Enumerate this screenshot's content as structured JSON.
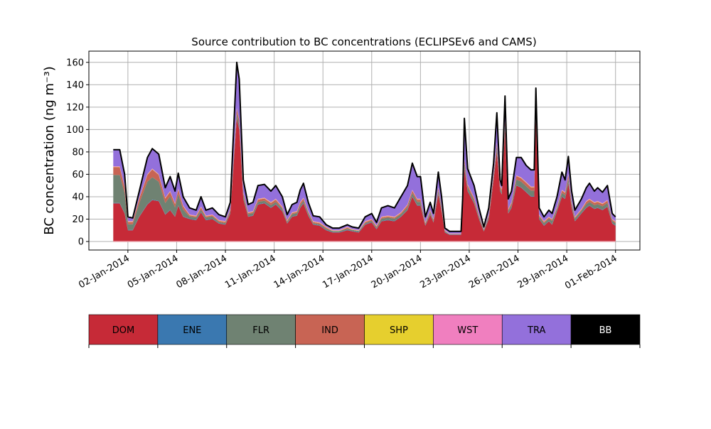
{
  "chart_data": {
    "type": "area",
    "stacked": true,
    "title": "Source contribution to BC concentrations (ECLIPSEv6 and CAMS)",
    "xlabel": "",
    "ylabel": "BC concentration (ng m⁻³)",
    "x_unit": "day of January 2014",
    "xlim": [
      -0.4,
      33.5
    ],
    "ylim": [
      -7.6,
      170
    ],
    "grid": true,
    "yticks": [
      0,
      20,
      40,
      60,
      80,
      100,
      120,
      140,
      160
    ],
    "xticks": [
      {
        "day": 2,
        "label": "02-Jan-2014"
      },
      {
        "day": 5,
        "label": "05-Jan-2014"
      },
      {
        "day": 8,
        "label": "08-Jan-2014"
      },
      {
        "day": 11,
        "label": "11-Jan-2014"
      },
      {
        "day": 14,
        "label": "14-Jan-2014"
      },
      {
        "day": 17,
        "label": "17-Jan-2014"
      },
      {
        "day": 20,
        "label": "20-Jan-2014"
      },
      {
        "day": 23,
        "label": "23-Jan-2014"
      },
      {
        "day": 26,
        "label": "26-Jan-2014"
      },
      {
        "day": 29,
        "label": "29-Jan-2014"
      },
      {
        "day": 32,
        "label": "01-Feb-2014"
      }
    ],
    "x": [
      1.1,
      1.5,
      1.8,
      2.0,
      2.3,
      2.7,
      3.2,
      3.5,
      3.9,
      4.3,
      4.6,
      4.9,
      5.1,
      5.4,
      5.8,
      6.2,
      6.5,
      6.8,
      7.2,
      7.6,
      8.0,
      8.3,
      8.7,
      8.85,
      9.1,
      9.4,
      9.7,
      10.0,
      10.4,
      10.8,
      11.1,
      11.5,
      11.8,
      12.1,
      12.4,
      12.6,
      12.8,
      13.1,
      13.4,
      13.8,
      14.2,
      14.6,
      15.0,
      15.5,
      15.8,
      16.2,
      16.6,
      17.0,
      17.3,
      17.6,
      18.0,
      18.4,
      18.8,
      19.2,
      19.5,
      19.8,
      20.0,
      20.3,
      20.6,
      20.8,
      21.1,
      21.3,
      21.5,
      21.8,
      22.3,
      22.5,
      22.6,
      22.7,
      22.9,
      23.3,
      23.6,
      23.9,
      24.2,
      24.5,
      24.7,
      24.9,
      25.0,
      25.2,
      25.4,
      25.6,
      25.9,
      26.2,
      26.5,
      26.8,
      27.0,
      27.1,
      27.3,
      27.6,
      27.9,
      28.1,
      28.4,
      28.7,
      28.9,
      29.1,
      29.3,
      29.5,
      29.9,
      30.2,
      30.4,
      30.7,
      30.9,
      31.2,
      31.5,
      31.8,
      32.0
    ],
    "total": [
      82,
      82,
      60,
      22,
      21,
      45,
      75,
      83,
      78,
      48,
      58,
      45,
      61,
      40,
      30,
      28,
      40,
      28,
      30,
      24,
      22,
      35,
      160,
      145,
      55,
      33,
      35,
      50,
      51,
      45,
      50,
      40,
      24,
      33,
      35,
      46,
      52,
      35,
      23,
      22,
      15,
      12,
      12,
      15,
      13,
      12,
      22,
      25,
      17,
      30,
      32,
      30,
      40,
      50,
      70,
      58,
      58,
      22,
      35,
      25,
      62,
      40,
      12,
      9,
      9,
      9,
      40,
      110,
      65,
      50,
      30,
      13,
      30,
      70,
      115,
      55,
      50,
      130,
      38,
      45,
      75,
      75,
      68,
      64,
      64,
      137,
      30,
      22,
      28,
      25,
      40,
      62,
      55,
      76,
      45,
      28,
      38,
      48,
      52,
      45,
      48,
      44,
      50,
      25,
      22
    ],
    "series": [
      {
        "name": "DOM",
        "color": "#c62a37",
        "values": [
          34,
          34,
          25,
          10,
          10,
          22,
          33,
          37,
          36,
          24,
          28,
          22,
          32,
          22,
          20,
          19,
          26,
          19,
          20,
          16,
          15,
          25,
          110,
          100,
          38,
          22,
          23,
          33,
          34,
          30,
          33,
          27,
          16,
          22,
          23,
          30,
          34,
          23,
          15,
          14,
          10,
          8,
          8,
          10,
          9,
          8,
          15,
          17,
          11,
          18,
          19,
          18,
          22,
          28,
          40,
          32,
          32,
          14,
          24,
          17,
          42,
          27,
          8,
          6,
          6,
          6,
          30,
          65,
          45,
          34,
          20,
          9,
          20,
          55,
          80,
          45,
          42,
          100,
          25,
          30,
          50,
          48,
          44,
          40,
          40,
          110,
          20,
          14,
          18,
          15,
          27,
          40,
          38,
          52,
          30,
          18,
          25,
          30,
          32,
          29,
          30,
          28,
          31,
          16,
          14
        ]
      },
      {
        "name": "ENE",
        "color": "#3a78b0",
        "values": 0.4
      },
      {
        "name": "FLR",
        "color": "#6f8272",
        "values": [
          25,
          25,
          18,
          5,
          5,
          12,
          20,
          20,
          17,
          10,
          12,
          8,
          10,
          6,
          2,
          2,
          2,
          2,
          2,
          1,
          1,
          2,
          4,
          4,
          3,
          2,
          2,
          2,
          2,
          2,
          2,
          2,
          1,
          2,
          2,
          2,
          2,
          2,
          1,
          1,
          1,
          1,
          1,
          1,
          1,
          1,
          1,
          1,
          1,
          2,
          2,
          2,
          2,
          2,
          3,
          3,
          3,
          1,
          2,
          1,
          3,
          2,
          1,
          0,
          0,
          0,
          2,
          4,
          3,
          2,
          2,
          1,
          2,
          3,
          4,
          2,
          2,
          4,
          2,
          2,
          5,
          5,
          5,
          5,
          5,
          4,
          2,
          2,
          2,
          3,
          2,
          3,
          3,
          4,
          3,
          2,
          2,
          3,
          3,
          3,
          3,
          3,
          3,
          2,
          2
        ]
      },
      {
        "name": "IND",
        "color": "#c86454",
        "values": [
          7,
          7,
          5,
          2,
          2,
          4,
          6,
          7,
          6,
          4,
          4,
          3,
          4,
          3,
          1,
          1,
          2,
          1,
          1,
          1,
          1,
          1,
          4,
          4,
          2,
          1,
          1,
          2,
          2,
          2,
          2,
          1,
          1,
          1,
          1,
          2,
          2,
          1,
          1,
          1,
          1,
          0,
          0,
          1,
          0,
          0,
          1,
          1,
          1,
          1,
          1,
          1,
          1,
          2,
          2,
          2,
          2,
          1,
          1,
          1,
          2,
          1,
          0,
          0,
          0,
          0,
          1,
          3,
          2,
          2,
          1,
          0,
          1,
          2,
          3,
          2,
          2,
          3,
          1,
          2,
          3,
          3,
          3,
          3,
          3,
          3,
          1,
          1,
          1,
          1,
          1,
          2,
          2,
          3,
          2,
          1,
          1,
          2,
          2,
          2,
          2,
          2,
          2,
          1,
          1
        ]
      },
      {
        "name": "SHP",
        "color": "#e6cf2e",
        "values": 0.3
      },
      {
        "name": "WST",
        "color": "#f07fbf",
        "values": 0.5
      },
      {
        "name": "TRA",
        "color": "#9370db",
        "values": [
          15,
          15,
          11,
          4,
          3,
          6,
          15,
          18,
          18,
          9,
          13,
          11,
          14,
          8,
          6,
          5,
          9,
          5,
          6,
          5,
          4,
          6,
          41,
          36,
          11,
          7,
          8,
          12,
          12,
          10,
          12,
          9,
          5,
          7,
          8,
          11,
          13,
          8,
          5,
          5,
          2,
          2,
          2,
          2,
          2,
          2,
          4,
          5,
          3,
          8,
          9,
          8,
          14,
          17,
          24,
          20,
          20,
          5,
          7,
          5,
          14,
          9,
          2,
          2,
          2,
          2,
          6,
          37,
          14,
          11,
          6,
          2,
          6,
          9,
          27,
          5,
          3,
          22,
          9,
          10,
          16,
          18,
          15,
          15,
          15,
          19,
          6,
          4,
          6,
          5,
          9,
          16,
          11,
          16,
          9,
          6,
          9,
          12,
          14,
          10,
          12,
          10,
          13,
          5,
          4
        ]
      },
      {
        "name": "BB",
        "color": "#000000",
        "values": 0
      }
    ]
  }
}
